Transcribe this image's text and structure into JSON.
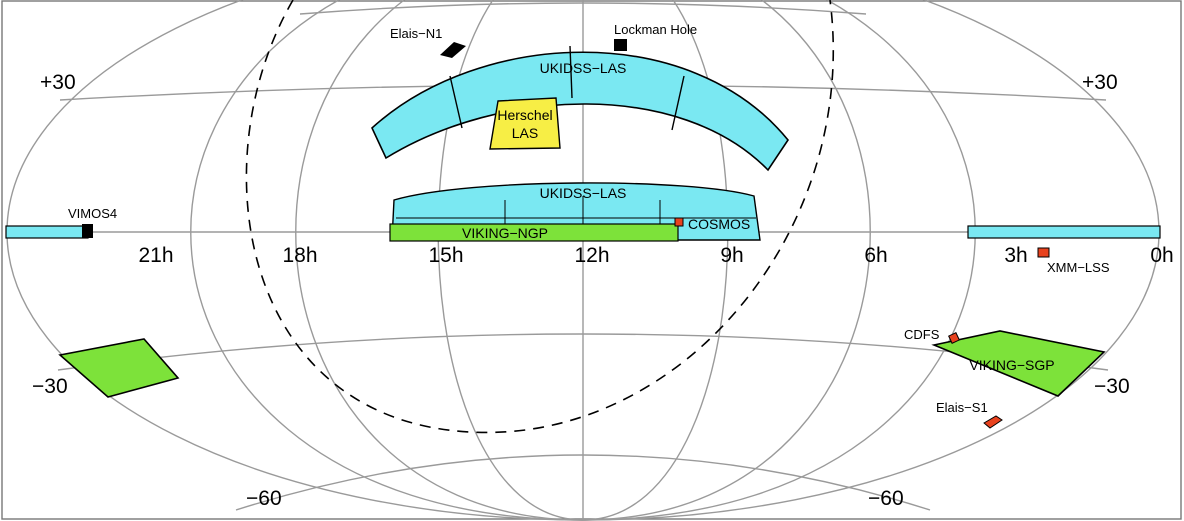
{
  "colors": {
    "ukidss": "#7ae8f2",
    "viking": "#7de23a",
    "herschel": "#f7ee45",
    "deep_field": "#e8421e",
    "grid": "#9a9a9a",
    "outline": "#000000"
  },
  "ra_ticks": [
    "21h",
    "18h",
    "15h",
    "12h",
    "9h",
    "6h",
    "3h",
    "0h"
  ],
  "dec_ticks": {
    "plus30_left": "+30",
    "plus30_right": "+30",
    "minus30_left": "−30",
    "minus30_right": "−30",
    "minus60_left": "−60",
    "minus60_right": "−60"
  },
  "fields": {
    "ukidss_las_north": "UKIDSS−LAS",
    "herschel_las_line1": "Herschel",
    "herschel_las_line2": "LAS",
    "ukidss_las_equatorial": "UKIDSS−LAS",
    "viking_ngp": "VIKING−NGP",
    "cosmos": "COSMOS",
    "vimos4": "VIMOS4",
    "xmm_lss": "XMM−LSS",
    "cdfs": "CDFS",
    "viking_sgp": "VIKING−SGP",
    "elais_s1": "Elais−S1",
    "elais_n1": "Elais−N1",
    "lockman_hole": "Lockman Hole"
  }
}
